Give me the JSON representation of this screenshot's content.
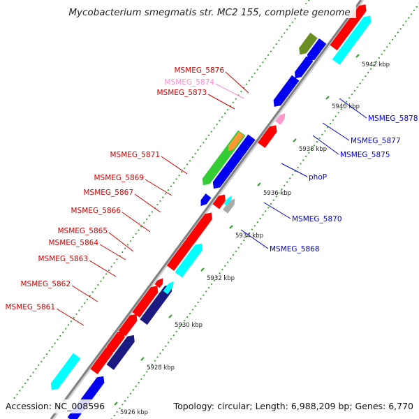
{
  "title": "Mycobacterium smegmatis str. MC2 155, complete genome",
  "footer": {
    "accession": "Accession: NC_008596",
    "summary": "Topology: circular; Length: 6,988,209 bp; Genes: 6,770"
  },
  "colors": {
    "backbone": "#808080",
    "dots": "#33a02c",
    "red": "#ff0000",
    "cyan": "#00ffff",
    "navy": "#1a1a80",
    "blue": "#0000ee",
    "pink": "#ff99cc",
    "gray": "#aaaaaa",
    "orange": "#ff9933",
    "green": "#33cc33",
    "olive": "#6b8e23",
    "label_red": "#cc0000",
    "label_pink": "#ff88cc",
    "label_blue": "#0000cc"
  },
  "ticks": [
    {
      "label": "5926 kbp"
    },
    {
      "label": "5928 kbp"
    },
    {
      "label": "5930 kbp"
    },
    {
      "label": "5932 kbp"
    },
    {
      "label": "5934 kbp"
    },
    {
      "label": "5936 kbp"
    },
    {
      "label": "5938 kbp"
    },
    {
      "label": "5940 kbp"
    },
    {
      "label": "5942 kbp"
    }
  ],
  "genes_left": [
    {
      "name": "MSMEG_5876",
      "color": "label_red"
    },
    {
      "name": "MSMEG_5874",
      "color": "label_pink"
    },
    {
      "name": "MSMEG_5873",
      "color": "label_red"
    },
    {
      "name": "MSMEG_5871",
      "color": "label_red"
    },
    {
      "name": "MSMEG_5869",
      "color": "label_red"
    },
    {
      "name": "MSMEG_5867",
      "color": "label_red"
    },
    {
      "name": "MSMEG_5866",
      "color": "label_red"
    },
    {
      "name": "MSMEG_5865",
      "color": "label_red"
    },
    {
      "name": "MSMEG_5864",
      "color": "label_red"
    },
    {
      "name": "MSMEG_5863",
      "color": "label_red"
    },
    {
      "name": "MSMEG_5862",
      "color": "label_red"
    },
    {
      "name": "MSMEG_5861",
      "color": "label_red"
    }
  ],
  "genes_right": [
    {
      "name": "MSMEG_5878",
      "color": "label_blue"
    },
    {
      "name": "MSMEG_5877",
      "color": "label_blue"
    },
    {
      "name": "MSMEG_5875",
      "color": "label_blue"
    },
    {
      "name": "phoP",
      "color": "label_blue"
    },
    {
      "name": "MSMEG_5870",
      "color": "label_blue"
    },
    {
      "name": "MSMEG_5868",
      "color": "label_blue"
    }
  ]
}
